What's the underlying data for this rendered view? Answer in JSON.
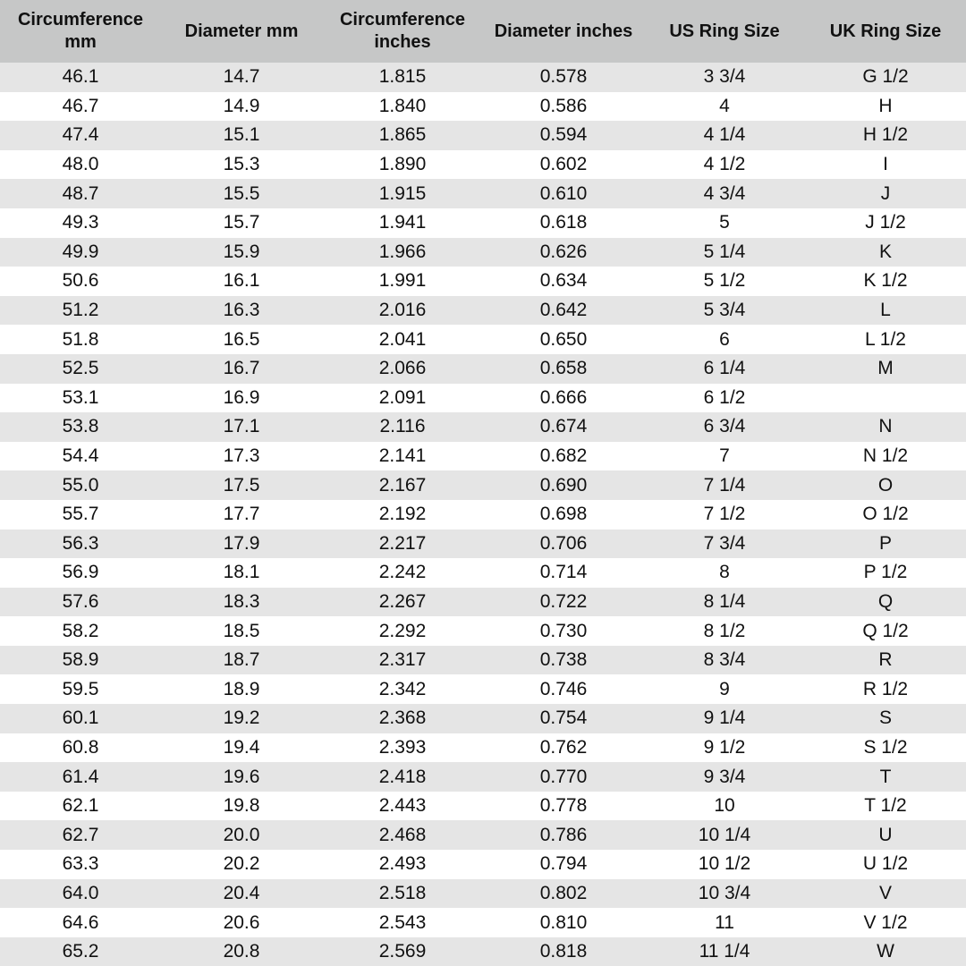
{
  "table": {
    "headers": [
      "Circumference mm",
      "Diameter mm",
      "Circumference inches",
      "Diameter inches",
      "US Ring Size",
      "UK Ring Size"
    ],
    "rows": [
      [
        "46.1",
        "14.7",
        "1.815",
        "0.578",
        "3 3/4",
        "G 1/2"
      ],
      [
        "46.7",
        "14.9",
        "1.840",
        "0.586",
        "4",
        "H"
      ],
      [
        "47.4",
        "15.1",
        "1.865",
        "0.594",
        "4 1/4",
        "H 1/2"
      ],
      [
        "48.0",
        "15.3",
        "1.890",
        "0.602",
        "4 1/2",
        "I"
      ],
      [
        "48.7",
        "15.5",
        "1.915",
        "0.610",
        "4 3/4",
        "J"
      ],
      [
        "49.3",
        "15.7",
        "1.941",
        "0.618",
        "5",
        "J 1/2"
      ],
      [
        "49.9",
        "15.9",
        "1.966",
        "0.626",
        "5 1/4",
        "K"
      ],
      [
        "50.6",
        "16.1",
        "1.991",
        "0.634",
        "5 1/2",
        "K 1/2"
      ],
      [
        "51.2",
        "16.3",
        "2.016",
        "0.642",
        "5 3/4",
        "L"
      ],
      [
        "51.8",
        "16.5",
        "2.041",
        "0.650",
        "6",
        "L 1/2"
      ],
      [
        "52.5",
        "16.7",
        "2.066",
        "0.658",
        "6 1/4",
        "M"
      ],
      [
        "53.1",
        "16.9",
        "2.091",
        "0.666",
        "6 1/2",
        ""
      ],
      [
        "53.8",
        "17.1",
        "2.116",
        "0.674",
        "6 3/4",
        "N"
      ],
      [
        "54.4",
        "17.3",
        "2.141",
        "0.682",
        "7",
        "N 1/2"
      ],
      [
        "55.0",
        "17.5",
        "2.167",
        "0.690",
        "7 1/4",
        "O"
      ],
      [
        "55.7",
        "17.7",
        "2.192",
        "0.698",
        "7 1/2",
        "O 1/2"
      ],
      [
        "56.3",
        "17.9",
        "2.217",
        "0.706",
        "7 3/4",
        "P"
      ],
      [
        "56.9",
        "18.1",
        "2.242",
        "0.714",
        "8",
        "P 1/2"
      ],
      [
        "57.6",
        "18.3",
        "2.267",
        "0.722",
        "8 1/4",
        "Q"
      ],
      [
        "58.2",
        "18.5",
        "2.292",
        "0.730",
        "8 1/2",
        "Q 1/2"
      ],
      [
        "58.9",
        "18.7",
        "2.317",
        "0.738",
        "8 3/4",
        "R"
      ],
      [
        "59.5",
        "18.9",
        "2.342",
        "0.746",
        "9",
        "R 1/2"
      ],
      [
        "60.1",
        "19.2",
        "2.368",
        "0.754",
        "9 1/4",
        "S"
      ],
      [
        "60.8",
        "19.4",
        "2.393",
        "0.762",
        "9 1/2",
        "S 1/2"
      ],
      [
        "61.4",
        "19.6",
        "2.418",
        "0.770",
        "9 3/4",
        "T"
      ],
      [
        "62.1",
        "19.8",
        "2.443",
        "0.778",
        "10",
        "T 1/2"
      ],
      [
        "62.7",
        "20.0",
        "2.468",
        "0.786",
        "10 1/4",
        "U"
      ],
      [
        "63.3",
        "20.2",
        "2.493",
        "0.794",
        "10 1/2",
        "U 1/2"
      ],
      [
        "64.0",
        "20.4",
        "2.518",
        "0.802",
        "10 3/4",
        "V"
      ],
      [
        "64.6",
        "20.6",
        "2.543",
        "0.810",
        "11",
        "V 1/2"
      ],
      [
        "65.2",
        "20.8",
        "2.569",
        "0.818",
        "11 1/4",
        "W"
      ]
    ]
  }
}
